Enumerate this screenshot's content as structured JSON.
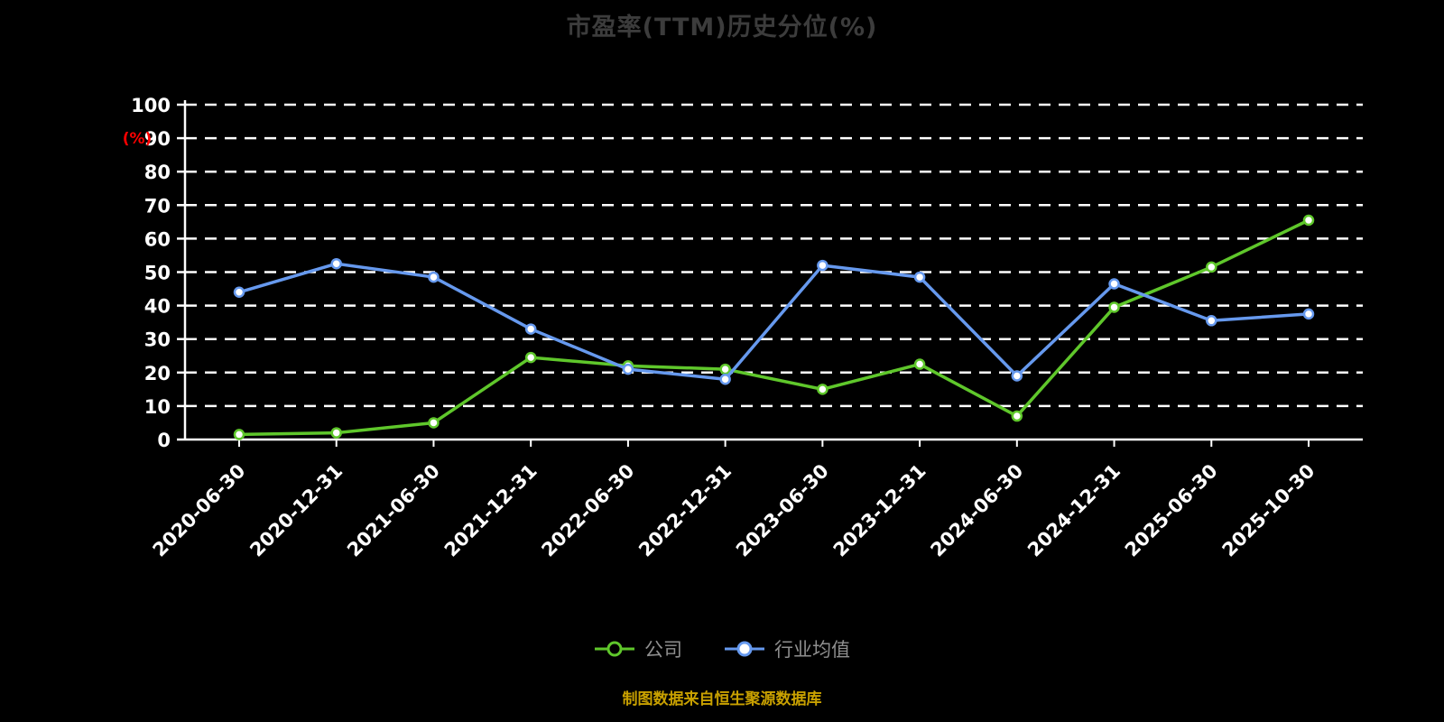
{
  "chart": {
    "title": "市盈率(TTM)历史分位(%)",
    "y_axis_label": "(%)",
    "source": "制图数据来自恒生聚源数据库",
    "colors": {
      "background": "#000000",
      "grid": "#ffffff",
      "axis": "#ffffff",
      "tick_label": "#ffffff",
      "title": "#3c3c3c",
      "y_unit_label": "#ff0000",
      "legend_label": "#8f8f8f",
      "source": "#c9a100"
    }
  },
  "chart_data": {
    "type": "line",
    "categories": [
      "2020-06-30",
      "2020-12-31",
      "2021-06-30",
      "2021-12-31",
      "2022-06-30",
      "2022-12-31",
      "2023-06-30",
      "2023-12-31",
      "2024-06-30",
      "2024-12-31",
      "2025-06-30",
      "2025-10-30"
    ],
    "series": [
      {
        "name": "公司",
        "color": "#5fc72b",
        "values": [
          1.5,
          2,
          5,
          24.5,
          22,
          21,
          15,
          22.5,
          7,
          39.5,
          51.5,
          65.5
        ]
      },
      {
        "name": "行业均值",
        "color": "#6699ee",
        "values": [
          44,
          52.5,
          48.5,
          33,
          21,
          18,
          52,
          48.5,
          19,
          46.5,
          35.5,
          37.5
        ]
      }
    ],
    "title": "市盈率(TTM)历史分位(%)",
    "xlabel": "",
    "ylabel": "(%)",
    "ylim": [
      0,
      100
    ],
    "y_ticks": [
      0,
      10,
      20,
      30,
      40,
      50,
      60,
      70,
      80,
      90,
      100
    ],
    "grid": "horizontal-dashed",
    "legend_position": "bottom-center"
  }
}
